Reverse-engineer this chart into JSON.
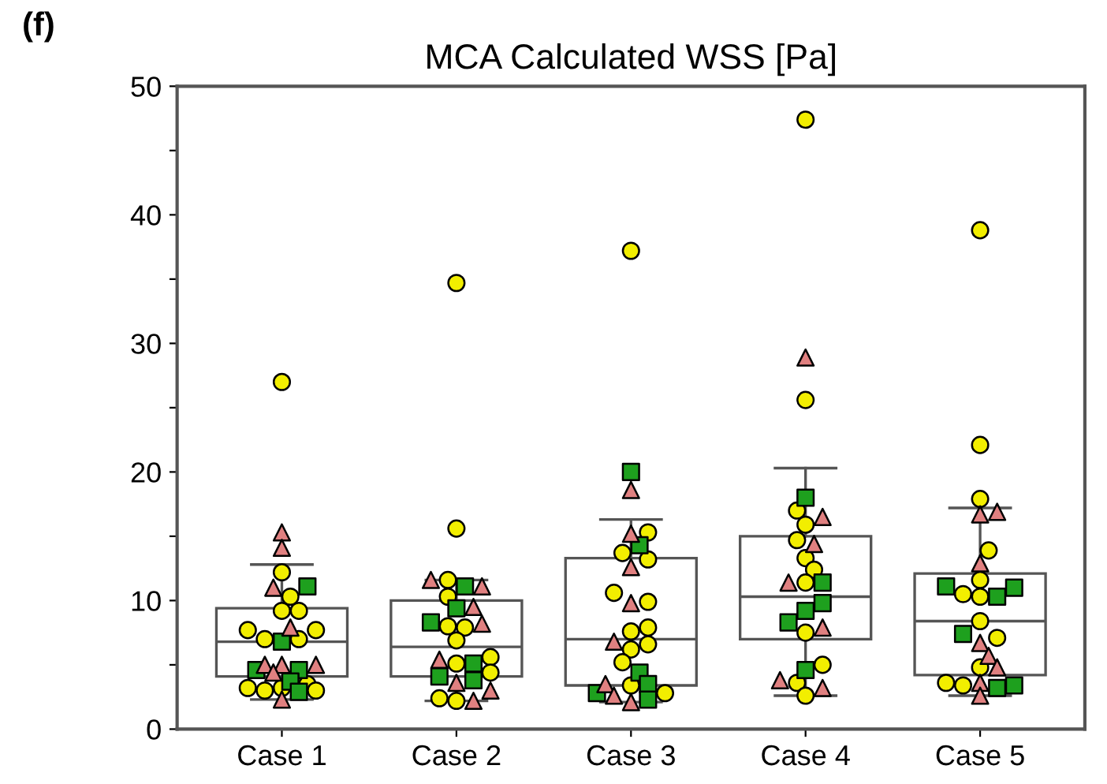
{
  "chart_data": {
    "type": "box",
    "title": "MCA Calculated WSS [Pa]",
    "annotations": [
      "(f)"
    ],
    "categories": [
      "Case 1",
      "Case 2",
      "Case 3",
      "Case 4",
      "Case 5"
    ],
    "boxes": [
      {
        "low": 2.3,
        "q1": 4.1,
        "median": 6.8,
        "q3": 9.4,
        "high": 12.8
      },
      {
        "low": 2.2,
        "q1": 4.1,
        "median": 6.4,
        "q3": 10.0,
        "high": 11.6
      },
      {
        "low": 2.1,
        "q1": 3.4,
        "median": 7.0,
        "q3": 13.3,
        "high": 16.3
      },
      {
        "low": 2.6,
        "q1": 7.0,
        "median": 10.3,
        "q3": 15.0,
        "high": 20.3
      },
      {
        "low": 2.6,
        "q1": 4.2,
        "median": 8.4,
        "q3": 12.1,
        "high": 17.2
      }
    ],
    "ylim": [
      0,
      50
    ],
    "yticks": [
      0,
      {
        "value": 5,
        "label": null
      },
      10,
      {
        "value": 15,
        "label": null
      },
      20,
      {
        "value": 25,
        "label": null
      },
      30,
      {
        "value": 35,
        "label": null
      },
      40,
      {
        "value": 45,
        "label": null
      },
      50
    ],
    "grid": false,
    "legend": false,
    "series": [
      {
        "type": "scatter",
        "marker": "circle",
        "color": "#f2ee00",
        "x": [
          "Case 1",
          "Case 1",
          "Case 1",
          "Case 1",
          "Case 1",
          "Case 1",
          "Case 1",
          "Case 1",
          "Case 1",
          "Case 1",
          "Case 1",
          "Case 1",
          "Case 1",
          "Case 1",
          "Case 2",
          "Case 2",
          "Case 2",
          "Case 2",
          "Case 2",
          "Case 2",
          "Case 2",
          "Case 2",
          "Case 2",
          "Case 2",
          "Case 2",
          "Case 2",
          "Case 3",
          "Case 3",
          "Case 3",
          "Case 3",
          "Case 3",
          "Case 3",
          "Case 3",
          "Case 3",
          "Case 3",
          "Case 3",
          "Case 3",
          "Case 3",
          "Case 3",
          "Case 4",
          "Case 4",
          "Case 4",
          "Case 4",
          "Case 4",
          "Case 4",
          "Case 4",
          "Case 4",
          "Case 4",
          "Case 4",
          "Case 4",
          "Case 4",
          "Case 5",
          "Case 5",
          "Case 5",
          "Case 5",
          "Case 5",
          "Case 5",
          "Case 5",
          "Case 5",
          "Case 5",
          "Case 5",
          "Case 5",
          "Case 5"
        ],
        "values": [
          27,
          12.2,
          10.3,
          9.2,
          9.2,
          7.7,
          7.7,
          7.0,
          7.0,
          3.5,
          3.2,
          3.2,
          3.0,
          3.0,
          34.7,
          15.6,
          11.6,
          10.3,
          7.9,
          8.0,
          6.9,
          5.6,
          5.1,
          4.4,
          2.4,
          2.2,
          37.2,
          15.3,
          13.7,
          13.2,
          10.6,
          9.9,
          7.9,
          7.6,
          6.6,
          6.2,
          5.2,
          3.4,
          2.8,
          47.4,
          25.6,
          17.0,
          15.9,
          14.7,
          13.3,
          12.4,
          11.4,
          7.5,
          5.0,
          3.6,
          2.6,
          38.8,
          22.1,
          17.9,
          13.9,
          11.6,
          10.5,
          10.3,
          8.4,
          7.1,
          4.8,
          3.6,
          3.4
        ]
      },
      {
        "type": "scatter",
        "marker": "square",
        "color": "#1ea01e",
        "x": [
          "Case 1",
          "Case 1",
          "Case 1",
          "Case 1",
          "Case 1",
          "Case 1",
          "Case 2",
          "Case 2",
          "Case 2",
          "Case 2",
          "Case 2",
          "Case 2",
          "Case 3",
          "Case 3",
          "Case 3",
          "Case 3",
          "Case 3",
          "Case 3",
          "Case 4",
          "Case 4",
          "Case 4",
          "Case 4",
          "Case 4",
          "Case 4",
          "Case 5",
          "Case 5",
          "Case 5",
          "Case 5",
          "Case 5",
          "Case 5"
        ],
        "values": [
          11.1,
          6.8,
          4.6,
          4.6,
          3.7,
          2.9,
          11.1,
          9.4,
          8.3,
          5.1,
          4.1,
          3.8,
          20,
          14.3,
          4.4,
          3.5,
          2.8,
          2.3,
          18.0,
          11.4,
          9.8,
          9.2,
          8.3,
          4.6,
          11.1,
          11.0,
          10.3,
          7.4,
          3.4,
          3.2
        ]
      },
      {
        "type": "scatter",
        "marker": "triangle",
        "color": "#e08080",
        "x": [
          "Case 1",
          "Case 1",
          "Case 1",
          "Case 1",
          "Case 1",
          "Case 1",
          "Case 1",
          "Case 1",
          "Case 1",
          "Case 2",
          "Case 2",
          "Case 2",
          "Case 2",
          "Case 2",
          "Case 2",
          "Case 2",
          "Case 2",
          "Case 3",
          "Case 3",
          "Case 3",
          "Case 3",
          "Case 3",
          "Case 3",
          "Case 3",
          "Case 3",
          "Case 4",
          "Case 4",
          "Case 4",
          "Case 4",
          "Case 4",
          "Case 4",
          "Case 4",
          "Case 5",
          "Case 5",
          "Case 5",
          "Case 5",
          "Case 5",
          "Case 5",
          "Case 5",
          "Case 5"
        ],
        "values": [
          15.3,
          14.1,
          11.0,
          7.9,
          5.0,
          5.0,
          5.0,
          4.4,
          2.3,
          11.6,
          11.1,
          9.5,
          8.2,
          5.4,
          3.6,
          3.0,
          2.2,
          18.6,
          15.2,
          12.6,
          9.8,
          6.8,
          3.5,
          2.6,
          2.1,
          28.9,
          16.5,
          14.4,
          11.4,
          7.9,
          3.8,
          3.2,
          16.9,
          16.7,
          12.9,
          6.7,
          5.7,
          4.8,
          3.6,
          2.6
        ]
      }
    ]
  }
}
